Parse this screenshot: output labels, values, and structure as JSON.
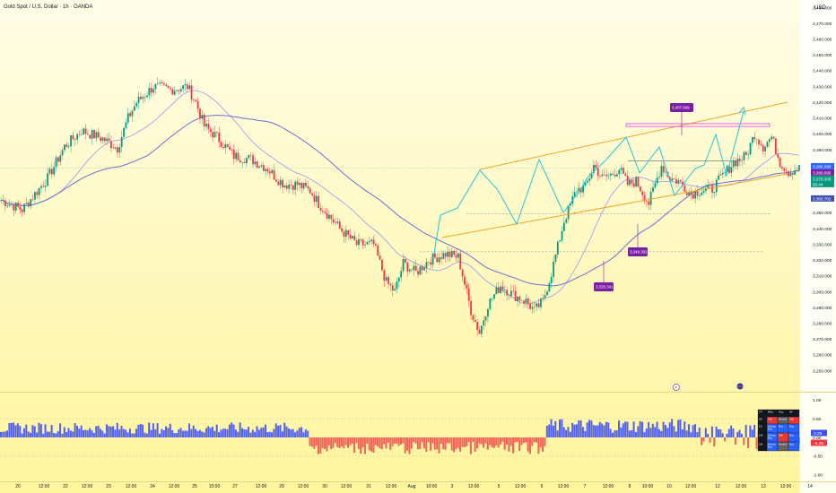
{
  "header": {
    "title": "Gold Spot / U.S. Dollar · 1h · OANDA",
    "currency": "USD"
  },
  "colors": {
    "background_top": "#fffde7",
    "background_bottom": "#fff59d",
    "candle_up": "#089981",
    "candle_down": "#f23645",
    "ma_fast": "#9598f5",
    "ma_slow": "#5b5fd6",
    "channel": "#f5a623",
    "zigzag": "#26c6da",
    "resistance_zone": "#e040fb",
    "label_bg": "#7b1fa2",
    "histogram_positive": "#3f51f5",
    "histogram_negative": "#ef5350"
  },
  "chart_data": [
    {
      "type": "candlestick",
      "title": "Gold Spot / U.S. Dollar · 1h · OANDA",
      "y_unit": "USD",
      "ylim": [
        3245,
        3490
      ],
      "y_ticks": [
        3250,
        3260,
        3270,
        3280,
        3290,
        3300,
        3310,
        3320,
        3330,
        3340,
        3350,
        3360,
        3370,
        3380,
        3390,
        3400,
        3410,
        3420,
        3430,
        3440,
        3450,
        3460,
        3470,
        3480
      ],
      "x_tick_labels": [
        "20",
        "12:00",
        "22",
        "12:00",
        "23",
        "12:00",
        "24",
        "12:00",
        "25",
        "10:00",
        "27",
        "12:00",
        "29",
        "12:00",
        "30",
        "12:00",
        "31",
        "12:00",
        "Aug",
        "10:00",
        "3",
        "12:00",
        "5",
        "12:00",
        "6",
        "12:00",
        "7",
        "12:00",
        "8",
        "10:00",
        "10",
        "12:00",
        "12",
        "12:00",
        "13",
        "12:00",
        "14"
      ],
      "price_path": [
        [
          0,
          3358
        ],
        [
          10,
          3352
        ],
        [
          22,
          3372
        ],
        [
          30,
          3392
        ],
        [
          38,
          3402
        ],
        [
          48,
          3397
        ],
        [
          55,
          3391
        ],
        [
          60,
          3410
        ],
        [
          64,
          3420
        ],
        [
          72,
          3430
        ],
        [
          80,
          3428
        ],
        [
          88,
          3430
        ],
        [
          92,
          3420
        ],
        [
          96,
          3405
        ],
        [
          102,
          3398
        ],
        [
          110,
          3386
        ],
        [
          118,
          3384
        ],
        [
          126,
          3378
        ],
        [
          130,
          3372
        ],
        [
          134,
          3368
        ],
        [
          140,
          3368
        ],
        [
          146,
          3364
        ],
        [
          150,
          3356
        ],
        [
          160,
          3340
        ],
        [
          168,
          3330
        ],
        [
          176,
          3330
        ],
        [
          182,
          3306
        ],
        [
          186,
          3300
        ],
        [
          190,
          3318
        ],
        [
          196,
          3312
        ],
        [
          202,
          3320
        ],
        [
          210,
          3324
        ],
        [
          216,
          3322
        ],
        [
          222,
          3288
        ],
        [
          226,
          3274
        ],
        [
          230,
          3292
        ],
        [
          236,
          3304
        ],
        [
          242,
          3298
        ],
        [
          248,
          3294
        ],
        [
          252,
          3288
        ],
        [
          256,
          3294
        ],
        [
          260,
          3312
        ],
        [
          266,
          3345
        ],
        [
          272,
          3365
        ],
        [
          276,
          3366
        ],
        [
          280,
          3380
        ],
        [
          284,
          3372
        ],
        [
          288,
          3374
        ],
        [
          292,
          3378
        ],
        [
          296,
          3368
        ],
        [
          300,
          3370
        ],
        [
          306,
          3356
        ],
        [
          312,
          3380
        ],
        [
          316,
          3372
        ],
        [
          320,
          3370
        ],
        [
          326,
          3362
        ],
        [
          330,
          3364
        ],
        [
          336,
          3365
        ],
        [
          340,
          3372
        ],
        [
          346,
          3382
        ],
        [
          352,
          3386
        ],
        [
          356,
          3400
        ],
        [
          360,
          3392
        ],
        [
          364,
          3398
        ],
        [
          368,
          3382
        ],
        [
          372,
          3376
        ],
        [
          376,
          3378
        ]
      ],
      "candle_count": 378,
      "overlays": {
        "moving_averages": [
          "fast",
          "slow"
        ],
        "channel": "ascending, orange",
        "zigzag_projection": "cyan",
        "resistance_zone": [
          3404,
          3406
        ]
      },
      "annotations": [
        {
          "label": "3,407.699",
          "price": 3407.699
        },
        {
          "label": "3,349.302",
          "price": 3349.302
        },
        {
          "label": "3,325.341",
          "price": 3325.341
        }
      ],
      "price_badges": [
        {
          "label": "3,386.088",
          "price": 3386.088,
          "color": "#2962ff"
        },
        {
          "label": "3,380.095",
          "price": 3380.095,
          "color": "#7b1fa2"
        },
        {
          "label": "3,378.305",
          "price": 3378.305,
          "color": "#089981"
        },
        {
          "label": "55:44",
          "price": 3374,
          "color": "#089981"
        },
        {
          "label": "3,365.702",
          "price": 3365.702,
          "color": "#3f51b5"
        }
      ]
    },
    {
      "type": "histogram",
      "ylim": [
        -1.0,
        1.0
      ],
      "y_ticks": [
        1.0,
        0.5,
        0.0,
        -0.5,
        -1.0
      ],
      "y_tick_labels": [
        "1.00",
        "0.50",
        "0.00",
        "-0.50",
        "-1.00"
      ],
      "current_values": [
        {
          "label": "0.25",
          "value": 0.25,
          "color": "#3f51f5"
        },
        {
          "label": "-0.25",
          "value": -0.25,
          "color": "#f23645"
        }
      ],
      "segments": [
        {
          "from": 0,
          "to": 146,
          "sign": "positive",
          "amplitude": 0.4
        },
        {
          "from": 146,
          "to": 258,
          "sign": "negative",
          "amplitude": 0.45
        },
        {
          "from": 258,
          "to": 330,
          "sign": "positive",
          "amplitude": 0.5
        },
        {
          "from": 330,
          "to": 378,
          "sign": "mixed",
          "amplitude": 0.35
        }
      ]
    }
  ],
  "summary_table": {
    "headers": [
      "TF",
      "MAs",
      "Osc.",
      "All"
    ],
    "rows": [
      [
        "5D",
        "Sell",
        "Neutral",
        "Sell"
      ],
      [
        "1D",
        "Strong Buy",
        "Buy",
        "Buy"
      ],
      [
        "1W",
        "Strong Buy",
        "Sell",
        "Buy"
      ],
      [
        "1M",
        "Strong Buy",
        "Neutral",
        "Buy"
      ]
    ]
  },
  "markers": [
    {
      "label": "F",
      "name": "fed-event-icon"
    },
    {
      "label": "us-flag",
      "name": "us-event-icon"
    }
  ]
}
